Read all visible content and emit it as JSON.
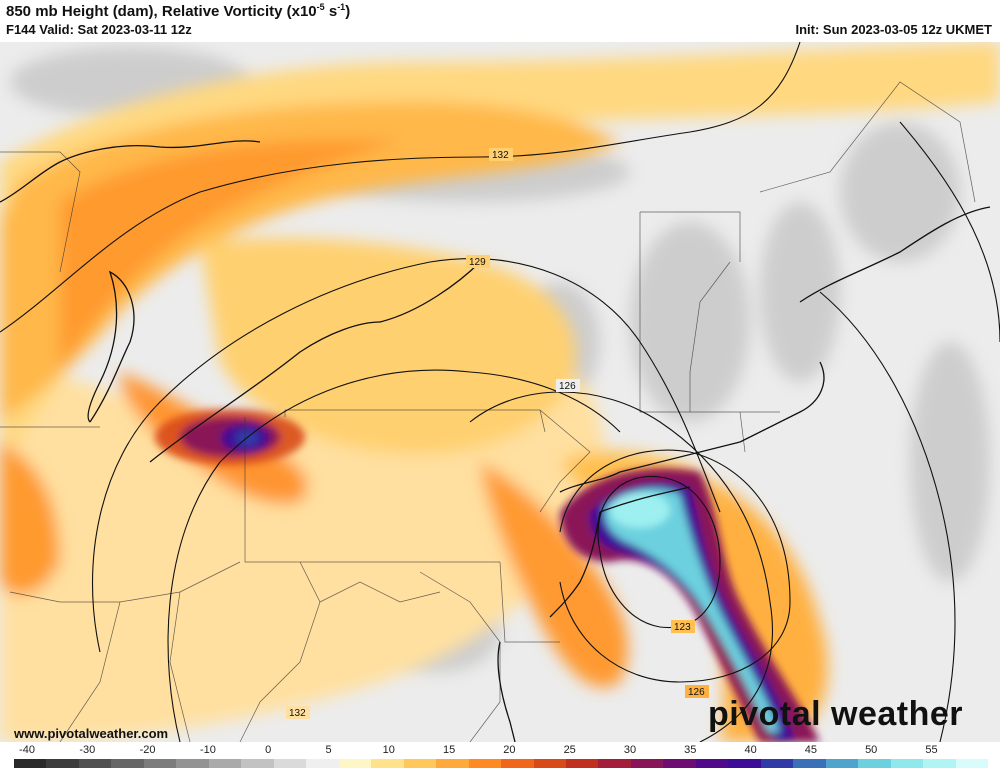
{
  "header": {
    "title_main": "850 mb Height (dam), Relative Vorticity (x10",
    "title_exp1": "-5",
    "title_mid": " s",
    "title_exp2": "-1",
    "title_end": ")",
    "valid": "F144 Valid: Sat 2023-03-11 12z",
    "init": "Init: Sun 2023-03-05 12z UKMET"
  },
  "contour_labels": [
    "132",
    "129",
    "126",
    "123",
    "126",
    "132"
  ],
  "legend": {
    "ticks": [
      "-40",
      "-30",
      "-20",
      "-10",
      "0",
      "5",
      "10",
      "15",
      "20",
      "25",
      "30",
      "35",
      "40",
      "45",
      "50",
      "55"
    ],
    "colors": [
      "#2a2a2a",
      "#3c3c3c",
      "#505050",
      "#666666",
      "#7c7c7c",
      "#939393",
      "#aaaaaa",
      "#c2c2c2",
      "#dadada",
      "#efefef",
      "#fff6c8",
      "#ffe28a",
      "#ffc85a",
      "#ffa93a",
      "#ff8a22",
      "#f0661a",
      "#d84a18",
      "#c0301e",
      "#a41d3a",
      "#8a1458",
      "#6e0c74",
      "#52088a",
      "#3c0c98",
      "#303aa6",
      "#3a70b8",
      "#4ea4cc",
      "#6cd0de",
      "#8ee8ec",
      "#b0f4f4",
      "#d8fcfc"
    ]
  },
  "watermark": {
    "site": "www.pivotalweather.com",
    "brand": "pivotal weather"
  }
}
